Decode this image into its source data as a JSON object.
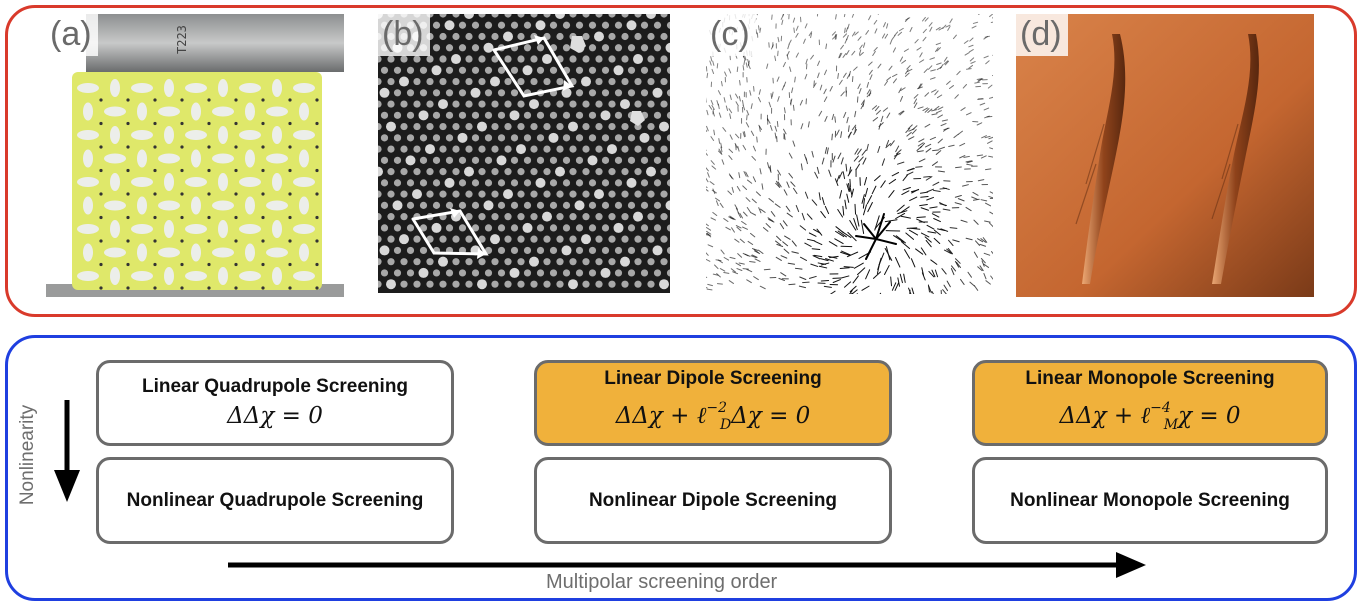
{
  "panels": [
    {
      "label": "(a)",
      "image": "yellow perforated elastic lattice photo"
    },
    {
      "label": "(b)",
      "image": "colloidal crystal micrograph with lattice arrows"
    },
    {
      "label": "(c)",
      "image": "displacement field arrows with defect"
    },
    {
      "label": "(d)",
      "image": "wrinkled orange sheet photo"
    }
  ],
  "colors": {
    "top_frame": "#d93a2b",
    "bottom_frame": "#1f3fe0",
    "highlight_box": "#f0b13b",
    "box_border": "#6b6b6b"
  },
  "boxes": {
    "linear_quadrupole": {
      "title": "Linear Quadrupole Screening",
      "eq": "ΔΔχ = 0"
    },
    "linear_dipole": {
      "title": "Linear Dipole Screening",
      "eq_main": "ΔΔχ + ℓ",
      "eq_sup": "−2",
      "eq_sub": "D",
      "eq_tail": "Δχ = 0"
    },
    "linear_monopole": {
      "title": "Linear Monopole Screening",
      "eq_main": "ΔΔχ + ℓ",
      "eq_sup": "−4",
      "eq_sub": "M",
      "eq_tail": "χ = 0"
    },
    "nonlinear_quadrupole": {
      "title": "Nonlinear Quadrupole Screening"
    },
    "nonlinear_dipole": {
      "title": "Nonlinear Dipole Screening"
    },
    "nonlinear_monopole": {
      "title": "Nonlinear Monopole Screening"
    }
  },
  "axes": {
    "vertical": "Nonlinearity",
    "horizontal": "Multipolar screening order"
  }
}
